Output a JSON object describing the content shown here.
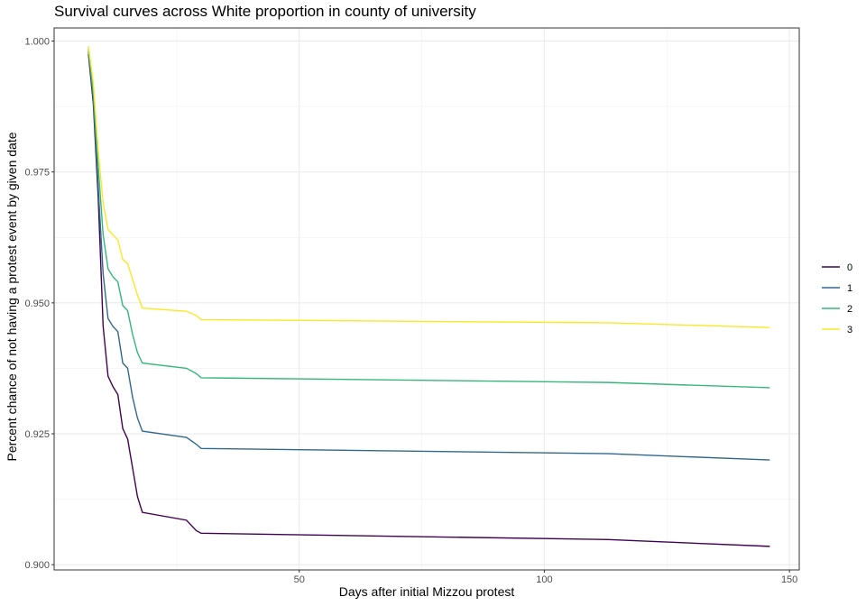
{
  "chart_data": {
    "type": "line",
    "title": "Survival curves across White proportion in county of university",
    "xlabel": "Days after initial Mizzou protest",
    "ylabel": "Percent chance of not having a protest event by given date",
    "xlim": [
      0,
      152
    ],
    "ylim": [
      0.899,
      1.0025
    ],
    "xticks": [
      50,
      100,
      150
    ],
    "xtick_labels": [
      "50",
      "100",
      "150"
    ],
    "yticks": [
      0.9,
      0.925,
      0.95,
      0.975,
      1.0
    ],
    "ytick_labels": [
      "0.900",
      "0.925",
      "0.950",
      "0.975",
      "1.000"
    ],
    "grid": true,
    "legend_position": "right",
    "series": [
      {
        "name": "0",
        "color": "#440154",
        "points": [
          [
            7,
            0.9975
          ],
          [
            8,
            0.988
          ],
          [
            9,
            0.97
          ],
          [
            10,
            0.9455
          ],
          [
            11,
            0.936
          ],
          [
            12,
            0.934
          ],
          [
            13,
            0.9325
          ],
          [
            14,
            0.926
          ],
          [
            15,
            0.924
          ],
          [
            16,
            0.9185
          ],
          [
            17,
            0.913
          ],
          [
            18,
            0.91
          ],
          [
            27,
            0.9085
          ],
          [
            29,
            0.9065
          ],
          [
            30,
            0.906
          ],
          [
            113,
            0.9048
          ],
          [
            146,
            0.9035
          ]
        ]
      },
      {
        "name": "1",
        "color": "#31688E",
        "points": [
          [
            7,
            0.998
          ],
          [
            8,
            0.989
          ],
          [
            9,
            0.972
          ],
          [
            10,
            0.9555
          ],
          [
            11,
            0.947
          ],
          [
            12,
            0.9455
          ],
          [
            13,
            0.9445
          ],
          [
            14,
            0.9385
          ],
          [
            15,
            0.9375
          ],
          [
            16,
            0.932
          ],
          [
            17,
            0.928
          ],
          [
            18,
            0.9255
          ],
          [
            27,
            0.9243
          ],
          [
            29,
            0.923
          ],
          [
            30,
            0.9222
          ],
          [
            113,
            0.9212
          ],
          [
            146,
            0.92
          ]
        ]
      },
      {
        "name": "2",
        "color": "#35B779",
        "points": [
          [
            7,
            0.9985
          ],
          [
            8,
            0.99
          ],
          [
            9,
            0.976
          ],
          [
            10,
            0.963
          ],
          [
            11,
            0.9565
          ],
          [
            12,
            0.955
          ],
          [
            13,
            0.954
          ],
          [
            14,
            0.9495
          ],
          [
            15,
            0.9485
          ],
          [
            16,
            0.944
          ],
          [
            17,
            0.9405
          ],
          [
            18,
            0.9385
          ],
          [
            27,
            0.9375
          ],
          [
            29,
            0.9365
          ],
          [
            30,
            0.9357
          ],
          [
            113,
            0.9348
          ],
          [
            146,
            0.9338
          ]
        ]
      },
      {
        "name": "3",
        "color": "#FDE725",
        "points": [
          [
            7,
            0.999
          ],
          [
            8,
            0.992
          ],
          [
            9,
            0.979
          ],
          [
            10,
            0.969
          ],
          [
            11,
            0.964
          ],
          [
            12,
            0.963
          ],
          [
            13,
            0.962
          ],
          [
            14,
            0.9583
          ],
          [
            15,
            0.9575
          ],
          [
            16,
            0.9545
          ],
          [
            17,
            0.9515
          ],
          [
            18,
            0.949
          ],
          [
            27,
            0.9484
          ],
          [
            29,
            0.9476
          ],
          [
            30,
            0.9468
          ],
          [
            113,
            0.9462
          ],
          [
            146,
            0.9453
          ]
        ]
      }
    ]
  }
}
